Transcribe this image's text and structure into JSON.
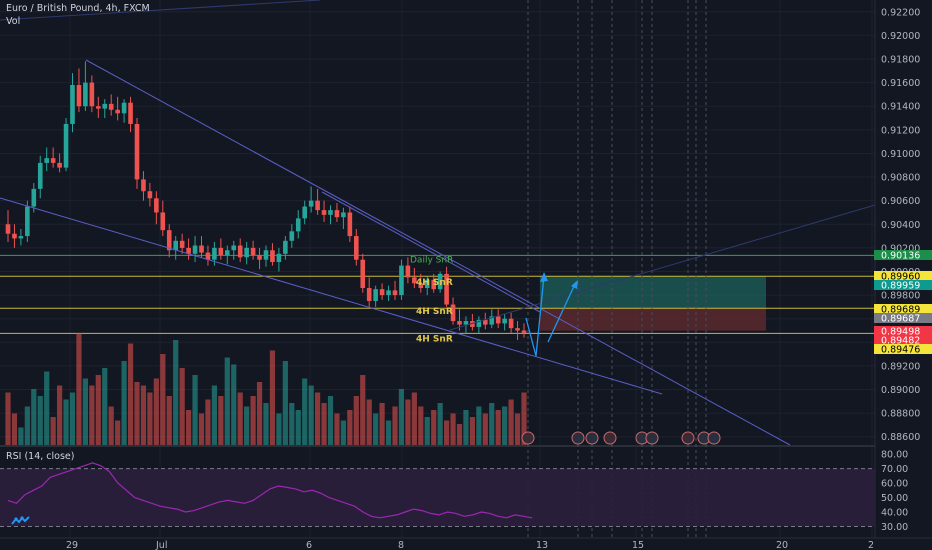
{
  "header": {
    "title": "Euro / British Pound, 4h, FXCM",
    "volume_label": "Vol"
  },
  "rsi": {
    "label": "RSI (14, close)",
    "ticks": [
      "80.00",
      "70.00",
      "60.00",
      "50.00",
      "40.00",
      "30.00"
    ]
  },
  "colors": {
    "background": "#131722",
    "up": "#26a69a",
    "down": "#ef5350",
    "grid": "#1e2230",
    "trendline": "#5b5fc7",
    "snr_line": "#c9b93a",
    "tp_zone": "#1c5c57",
    "sl_zone": "#5e2a30",
    "projection": "#2196f3",
    "rsi_line": "#7b1fa2"
  },
  "chart_data": {
    "type": "candlestick",
    "symbol": "Euro / British Pound",
    "timeframe": "4h",
    "source": "FXCM",
    "y_ticks": [
      "0.92200",
      "0.92000",
      "0.91800",
      "0.91600",
      "0.91400",
      "0.91200",
      "0.91000",
      "0.90800",
      "0.90600",
      "0.90400",
      "0.90200",
      "0.90000",
      "0.89800",
      "0.89600",
      "0.89400",
      "0.89200",
      "0.89000",
      "0.88800",
      "0.88600"
    ],
    "x_ticks": [
      "29",
      "Jul",
      "6",
      "8",
      "13",
      "15",
      "20",
      "2"
    ],
    "ylim": [
      0.8853,
      0.923
    ],
    "price_badges": [
      {
        "label": "0.90136",
        "value": 0.90136,
        "style": "green"
      },
      {
        "label": "0.89960",
        "value": 0.8996,
        "style": "yellow"
      },
      {
        "label": "0.89959",
        "value": 0.89959,
        "style": "teal"
      },
      {
        "label": "0.89689",
        "value": 0.89689,
        "style": "yellow"
      },
      {
        "label": "0.89687",
        "value": 0.89687,
        "style": "gray"
      },
      {
        "label": "0.89498",
        "value": 0.89498,
        "style": "red"
      },
      {
        "label": "0.89482",
        "value": 0.89482,
        "style": "red"
      },
      {
        "label": "0.89476",
        "value": 0.89476,
        "style": "yellow"
      }
    ],
    "annotations": [
      {
        "text": "Daily SnR",
        "value": 0.90136
      },
      {
        "text": "4H SnR",
        "value": 0.8996
      },
      {
        "text": "4H SnR",
        "value": 0.89689
      },
      {
        "text": "4H SnR",
        "value": 0.89476
      }
    ],
    "candles": [
      {
        "o": 0.904,
        "h": 0.9052,
        "l": 0.9025,
        "c": 0.9032
      },
      {
        "o": 0.9032,
        "h": 0.904,
        "l": 0.902,
        "c": 0.9028
      },
      {
        "o": 0.9028,
        "h": 0.9036,
        "l": 0.9022,
        "c": 0.903
      },
      {
        "o": 0.903,
        "h": 0.906,
        "l": 0.9025,
        "c": 0.9055
      },
      {
        "o": 0.9055,
        "h": 0.9075,
        "l": 0.905,
        "c": 0.907
      },
      {
        "o": 0.907,
        "h": 0.9098,
        "l": 0.9062,
        "c": 0.9092
      },
      {
        "o": 0.9092,
        "h": 0.9105,
        "l": 0.9085,
        "c": 0.9096
      },
      {
        "o": 0.9096,
        "h": 0.9105,
        "l": 0.9088,
        "c": 0.9092
      },
      {
        "o": 0.9092,
        "h": 0.91,
        "l": 0.9084,
        "c": 0.9088
      },
      {
        "o": 0.9088,
        "h": 0.913,
        "l": 0.9085,
        "c": 0.9125
      },
      {
        "o": 0.9125,
        "h": 0.9168,
        "l": 0.9118,
        "c": 0.9158
      },
      {
        "o": 0.9158,
        "h": 0.9172,
        "l": 0.9135,
        "c": 0.914
      },
      {
        "o": 0.914,
        "h": 0.9178,
        "l": 0.9136,
        "c": 0.916
      },
      {
        "o": 0.916,
        "h": 0.9166,
        "l": 0.9135,
        "c": 0.914
      },
      {
        "o": 0.914,
        "h": 0.9148,
        "l": 0.913,
        "c": 0.9138
      },
      {
        "o": 0.9138,
        "h": 0.9146,
        "l": 0.913,
        "c": 0.9142
      },
      {
        "o": 0.9142,
        "h": 0.915,
        "l": 0.9132,
        "c": 0.9137
      },
      {
        "o": 0.9137,
        "h": 0.9148,
        "l": 0.9128,
        "c": 0.9134
      },
      {
        "o": 0.9134,
        "h": 0.9146,
        "l": 0.9126,
        "c": 0.9143
      },
      {
        "o": 0.9143,
        "h": 0.9148,
        "l": 0.9118,
        "c": 0.9125
      },
      {
        "o": 0.9125,
        "h": 0.913,
        "l": 0.907,
        "c": 0.9078
      },
      {
        "o": 0.9078,
        "h": 0.9085,
        "l": 0.906,
        "c": 0.9068
      },
      {
        "o": 0.9068,
        "h": 0.9075,
        "l": 0.9055,
        "c": 0.9062
      },
      {
        "o": 0.9062,
        "h": 0.9068,
        "l": 0.904,
        "c": 0.905
      },
      {
        "o": 0.905,
        "h": 0.906,
        "l": 0.903,
        "c": 0.9035
      },
      {
        "o": 0.9035,
        "h": 0.904,
        "l": 0.9012,
        "c": 0.9018
      },
      {
        "o": 0.9018,
        "h": 0.903,
        "l": 0.901,
        "c": 0.9026
      },
      {
        "o": 0.9026,
        "h": 0.9032,
        "l": 0.9015,
        "c": 0.902
      },
      {
        "o": 0.902,
        "h": 0.9028,
        "l": 0.901,
        "c": 0.9015
      },
      {
        "o": 0.9015,
        "h": 0.903,
        "l": 0.9008,
        "c": 0.9022
      },
      {
        "o": 0.9022,
        "h": 0.903,
        "l": 0.9012,
        "c": 0.9016
      },
      {
        "o": 0.9016,
        "h": 0.9022,
        "l": 0.9005,
        "c": 0.901
      },
      {
        "o": 0.901,
        "h": 0.9025,
        "l": 0.9005,
        "c": 0.902
      },
      {
        "o": 0.902,
        "h": 0.9028,
        "l": 0.901,
        "c": 0.9014
      },
      {
        "o": 0.9014,
        "h": 0.9022,
        "l": 0.9006,
        "c": 0.9018
      },
      {
        "o": 0.9018,
        "h": 0.9026,
        "l": 0.901,
        "c": 0.9022
      },
      {
        "o": 0.9022,
        "h": 0.9028,
        "l": 0.9008,
        "c": 0.9012
      },
      {
        "o": 0.9012,
        "h": 0.9025,
        "l": 0.9006,
        "c": 0.902
      },
      {
        "o": 0.902,
        "h": 0.9026,
        "l": 0.901,
        "c": 0.9014
      },
      {
        "o": 0.9014,
        "h": 0.902,
        "l": 0.9002,
        "c": 0.901
      },
      {
        "o": 0.901,
        "h": 0.9022,
        "l": 0.9004,
        "c": 0.9018
      },
      {
        "o": 0.9018,
        "h": 0.9024,
        "l": 0.9005,
        "c": 0.9008
      },
      {
        "o": 0.9008,
        "h": 0.902,
        "l": 0.9,
        "c": 0.9015
      },
      {
        "o": 0.9015,
        "h": 0.903,
        "l": 0.901,
        "c": 0.9026
      },
      {
        "o": 0.9026,
        "h": 0.904,
        "l": 0.902,
        "c": 0.9034
      },
      {
        "o": 0.9034,
        "h": 0.9052,
        "l": 0.9028,
        "c": 0.9045
      },
      {
        "o": 0.9045,
        "h": 0.906,
        "l": 0.904,
        "c": 0.9055
      },
      {
        "o": 0.9055,
        "h": 0.9072,
        "l": 0.905,
        "c": 0.906
      },
      {
        "o": 0.906,
        "h": 0.907,
        "l": 0.9048,
        "c": 0.9052
      },
      {
        "o": 0.9052,
        "h": 0.906,
        "l": 0.9042,
        "c": 0.9048
      },
      {
        "o": 0.9048,
        "h": 0.9056,
        "l": 0.904,
        "c": 0.9052
      },
      {
        "o": 0.9052,
        "h": 0.9058,
        "l": 0.9042,
        "c": 0.9046
      },
      {
        "o": 0.9046,
        "h": 0.9054,
        "l": 0.9036,
        "c": 0.905
      },
      {
        "o": 0.905,
        "h": 0.9055,
        "l": 0.9025,
        "c": 0.903
      },
      {
        "o": 0.903,
        "h": 0.9036,
        "l": 0.9005,
        "c": 0.901
      },
      {
        "o": 0.901,
        "h": 0.9015,
        "l": 0.8982,
        "c": 0.8986
      },
      {
        "o": 0.8986,
        "h": 0.8995,
        "l": 0.897,
        "c": 0.8975
      },
      {
        "o": 0.8975,
        "h": 0.8988,
        "l": 0.897,
        "c": 0.8985
      },
      {
        "o": 0.8985,
        "h": 0.899,
        "l": 0.8976,
        "c": 0.898
      },
      {
        "o": 0.898,
        "h": 0.8988,
        "l": 0.8975,
        "c": 0.8984
      },
      {
        "o": 0.8984,
        "h": 0.8992,
        "l": 0.8976,
        "c": 0.898
      },
      {
        "o": 0.898,
        "h": 0.901,
        "l": 0.8976,
        "c": 0.9005
      },
      {
        "o": 0.9005,
        "h": 0.9012,
        "l": 0.899,
        "c": 0.8995
      },
      {
        "o": 0.8995,
        "h": 0.9003,
        "l": 0.8986,
        "c": 0.899
      },
      {
        "o": 0.899,
        "h": 0.8998,
        "l": 0.8982,
        "c": 0.8986
      },
      {
        "o": 0.8986,
        "h": 0.8996,
        "l": 0.898,
        "c": 0.8993
      },
      {
        "o": 0.8993,
        "h": 0.8998,
        "l": 0.8982,
        "c": 0.8985
      },
      {
        "o": 0.8985,
        "h": 0.9,
        "l": 0.8982,
        "c": 0.8998
      },
      {
        "o": 0.8998,
        "h": 0.9004,
        "l": 0.897,
        "c": 0.8972
      },
      {
        "o": 0.8972,
        "h": 0.8978,
        "l": 0.8955,
        "c": 0.8958
      },
      {
        "o": 0.8958,
        "h": 0.8968,
        "l": 0.895,
        "c": 0.8955
      },
      {
        "o": 0.8955,
        "h": 0.8962,
        "l": 0.8948,
        "c": 0.8958
      },
      {
        "o": 0.8958,
        "h": 0.8964,
        "l": 0.895,
        "c": 0.8953
      },
      {
        "o": 0.8953,
        "h": 0.8962,
        "l": 0.8948,
        "c": 0.8959
      },
      {
        "o": 0.8959,
        "h": 0.8965,
        "l": 0.8951,
        "c": 0.8955
      },
      {
        "o": 0.8955,
        "h": 0.8968,
        "l": 0.8952,
        "c": 0.8962
      },
      {
        "o": 0.8962,
        "h": 0.8968,
        "l": 0.8952,
        "c": 0.8956
      },
      {
        "o": 0.8956,
        "h": 0.8964,
        "l": 0.895,
        "c": 0.896
      },
      {
        "o": 0.896,
        "h": 0.8965,
        "l": 0.8948,
        "c": 0.8952
      },
      {
        "o": 0.8952,
        "h": 0.8958,
        "l": 0.8942,
        "c": 0.895
      },
      {
        "o": 0.895,
        "h": 0.8956,
        "l": 0.8944,
        "c": 0.8948
      }
    ],
    "volumes": [
      30,
      18,
      10,
      22,
      32,
      28,
      42,
      16,
      34,
      26,
      30,
      64,
      38,
      34,
      40,
      44,
      22,
      14,
      48,
      58,
      36,
      34,
      30,
      38,
      52,
      28,
      60,
      44,
      20,
      40,
      18,
      26,
      34,
      28,
      50,
      46,
      30,
      22,
      28,
      36,
      24,
      54,
      18,
      48,
      24,
      20,
      38,
      34,
      30,
      24,
      28,
      18,
      14,
      20,
      28,
      40,
      26,
      18,
      24,
      14,
      22,
      32,
      26,
      30,
      22,
      16,
      20,
      24,
      14,
      18,
      12,
      20,
      16,
      22,
      18,
      24,
      20,
      22,
      26,
      18,
      30
    ]
  }
}
